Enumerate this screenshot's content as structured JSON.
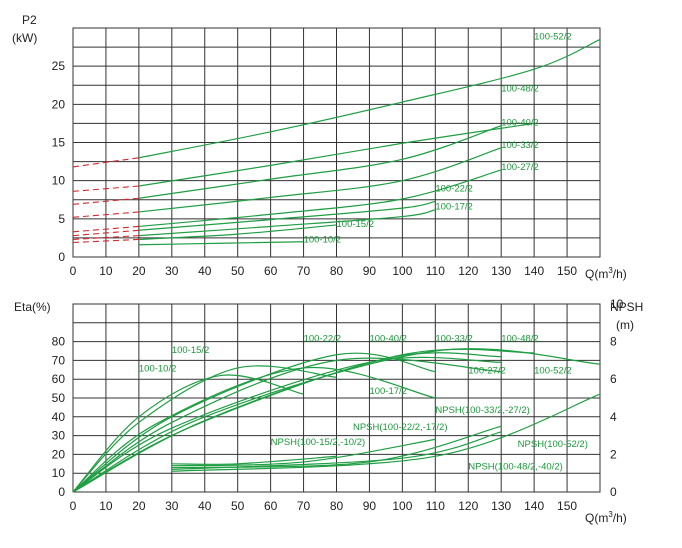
{
  "colors": {
    "curve": "#1f9e43",
    "extrapolated": "#d9262c",
    "grid": "#333333",
    "text": "#222222"
  },
  "chart_data": [
    {
      "type": "line",
      "ylabel_line1": "P2",
      "ylabel_line2": "(kW)",
      "xlabel_prefix": "Q(m",
      "xlabel_sup": "3",
      "xlabel_suffix": "/h)",
      "xlim": [
        0,
        160
      ],
      "ylim": [
        0,
        30
      ],
      "xticks": [
        "0",
        "10",
        "20",
        "30",
        "40",
        "50",
        "60",
        "70",
        "80",
        "90",
        "100",
        "110",
        "120",
        "130",
        "140",
        "150"
      ],
      "yticks": [
        "0",
        "5",
        "10",
        "15",
        "20",
        "25"
      ],
      "series": [
        {
          "name": "100-52/2",
          "x": [
            20,
            60,
            100,
            140,
            160
          ],
          "y": [
            13,
            16.4,
            20.3,
            24.6,
            28.5
          ],
          "dashed_x": [
            0,
            20
          ],
          "dashed_y": [
            11.8,
            13
          ]
        },
        {
          "name": "100-48/2",
          "x": [
            20,
            60,
            100,
            140
          ],
          "y": [
            9.3,
            12,
            14.9,
            17.5
          ],
          "dashed_x": [
            0,
            20
          ],
          "dashed_y": [
            8.6,
            9.3
          ]
        },
        {
          "name": "100-40/2",
          "x": [
            20,
            60,
            100,
            130
          ],
          "y": [
            7.7,
            10.2,
            12.8,
            17.2
          ],
          "dashed_x": [
            0,
            20
          ],
          "dashed_y": [
            6.9,
            7.7
          ]
        },
        {
          "name": "100-33/2",
          "x": [
            20,
            60,
            100,
            130
          ],
          "y": [
            5.9,
            7.8,
            10,
            14.3
          ],
          "dashed_x": [
            0,
            20
          ],
          "dashed_y": [
            5.2,
            5.9
          ]
        },
        {
          "name": "100-27/2",
          "x": [
            20,
            60,
            100,
            130
          ],
          "y": [
            4,
            5.6,
            7.6,
            11.4
          ],
          "dashed_x": [
            0,
            20
          ],
          "dashed_y": [
            3.3,
            4
          ]
        },
        {
          "name": "100-22/2",
          "x": [
            20,
            60,
            100,
            110
          ],
          "y": [
            3.5,
            4.9,
            6.4,
            7.3
          ],
          "dashed_x": [
            0,
            20
          ],
          "dashed_y": [
            2.8,
            3.5
          ]
        },
        {
          "name": "100-17/2",
          "x": [
            20,
            60,
            100,
            110
          ],
          "y": [
            2.8,
            4,
            5.3,
            6.2
          ],
          "dashed_x": [
            0,
            20
          ],
          "dashed_y": [
            2.3,
            2.8
          ]
        },
        {
          "name": "100-15/2",
          "x": [
            20,
            50,
            80
          ],
          "y": [
            2.3,
            3,
            4.2
          ],
          "dashed_x": [
            0,
            20
          ],
          "dashed_y": [
            1.9,
            2.3
          ]
        },
        {
          "name": "100-10/2",
          "x": [
            20,
            45,
            70
          ],
          "y": [
            1.6,
            1.8,
            2
          ]
        }
      ],
      "labels": [
        {
          "text": "100-52/2",
          "x": 140,
          "y": 28.5
        },
        {
          "text": "100-48/2",
          "x": 130,
          "y": 21.7
        },
        {
          "text": "100-40/2",
          "x": 130,
          "y": 17.2
        },
        {
          "text": "100-33/2",
          "x": 130,
          "y": 14.3
        },
        {
          "text": "100-27/2",
          "x": 130,
          "y": 11.4
        },
        {
          "text": "100-22/2",
          "x": 110,
          "y": 8.6
        },
        {
          "text": "100-17/2",
          "x": 110,
          "y": 6.2
        },
        {
          "text": "100-15/2",
          "x": 80,
          "y": 3.9
        },
        {
          "text": "100-10/2",
          "x": 70,
          "y": 1.9
        }
      ]
    },
    {
      "type": "line",
      "ylabel": "Eta(%)",
      "y2label_line1": "NPSH",
      "y2label_line2": "(m)",
      "xlabel_prefix": "Q(m",
      "xlabel_sup": "3",
      "xlabel_suffix": "/h)",
      "xlim": [
        0,
        160
      ],
      "ylim": [
        0,
        100
      ],
      "y2lim": [
        0,
        10
      ],
      "xticks": [
        "0",
        "10",
        "20",
        "30",
        "40",
        "50",
        "60",
        "70",
        "80",
        "90",
        "100",
        "110",
        "120",
        "130",
        "140",
        "150"
      ],
      "yticks": [
        "0",
        "10",
        "20",
        "30",
        "40",
        "50",
        "60",
        "70",
        "80"
      ],
      "y2ticks": [
        "0",
        "2",
        "4",
        "6",
        "8",
        "10"
      ],
      "eta_series": [
        {
          "name": "100-10/2",
          "x": [
            0,
            20,
            45,
            70
          ],
          "y": [
            0,
            40,
            62,
            52
          ]
        },
        {
          "name": "100-15/2",
          "x": [
            0,
            20,
            50,
            80
          ],
          "y": [
            0,
            37,
            66,
            61
          ]
        },
        {
          "name": "100-17/2",
          "x": [
            0,
            25,
            70,
            110
          ],
          "y": [
            0,
            36,
            66,
            50
          ]
        },
        {
          "name": "100-22/2",
          "x": [
            0,
            30,
            80,
            110
          ],
          "y": [
            0,
            40,
            73,
            64
          ]
        },
        {
          "name": "100-27/2",
          "x": [
            0,
            30,
            80,
            130
          ],
          "y": [
            0,
            37,
            70,
            64
          ]
        },
        {
          "name": "100-33/2",
          "x": [
            0,
            30,
            90,
            130
          ],
          "y": [
            0,
            34,
            69,
            69
          ]
        },
        {
          "name": "100-40/2",
          "x": [
            0,
            35,
            95,
            130
          ],
          "y": [
            0,
            34,
            71,
            72
          ]
        },
        {
          "name": "100-48/2",
          "x": [
            0,
            40,
            100,
            140
          ],
          "y": [
            0,
            38,
            73,
            74
          ]
        },
        {
          "name": "100-52/2",
          "x": [
            0,
            40,
            110,
            160
          ],
          "y": [
            0,
            40,
            75,
            68
          ]
        }
      ],
      "npsh_series": [
        {
          "name": "NPSH(100-15/2,-10/2)",
          "x": [
            30,
            50,
            80
          ],
          "y": [
            1.5,
            1.5,
            1.9
          ]
        },
        {
          "name": "NPSH(100-22/2,-17/2)",
          "x": [
            30,
            70,
            110
          ],
          "y": [
            1.4,
            1.6,
            2.8
          ]
        },
        {
          "name": "NPSH(100-33/2,-27/2)",
          "x": [
            30,
            90,
            130
          ],
          "y": [
            1.3,
            1.6,
            3.5
          ]
        },
        {
          "name": "NPSH(100-48/2,-40/2)",
          "x": [
            30,
            100,
            130
          ],
          "y": [
            1.2,
            1.8,
            3.2
          ]
        },
        {
          "name": "NPSH(100-52/2)",
          "x": [
            30,
            110,
            160
          ],
          "y": [
            1.1,
            1.9,
            5.2
          ]
        }
      ],
      "labels": [
        {
          "text": "100-10/2",
          "x": 20,
          "y": 64
        },
        {
          "text": "100-15/2",
          "x": 30,
          "y": 74
        },
        {
          "text": "100-22/2",
          "x": 70,
          "y": 80
        },
        {
          "text": "100-40/2",
          "x": 90,
          "y": 80
        },
        {
          "text": "100-33/2",
          "x": 110,
          "y": 80
        },
        {
          "text": "100-48/2",
          "x": 130,
          "y": 80
        },
        {
          "text": "100-17/2",
          "x": 90,
          "y": 52
        },
        {
          "text": "100-27/2",
          "x": 120,
          "y": 63
        },
        {
          "text": "100-52/2",
          "x": 140,
          "y": 63
        },
        {
          "text": "NPSH(100-33/2,-27/2)",
          "x": 110,
          "y": 42
        },
        {
          "text": "NPSH(100-22/2,-17/2)",
          "x": 85,
          "y": 33
        },
        {
          "text": "NPSH(100-15/2,-10/2)",
          "x": 60,
          "y": 25
        },
        {
          "text": "NPSH(100-52/2)",
          "x": 135,
          "y": 24
        },
        {
          "text": "NPSH(100-48/2,-40/2)",
          "x": 120,
          "y": 12
        }
      ]
    }
  ]
}
